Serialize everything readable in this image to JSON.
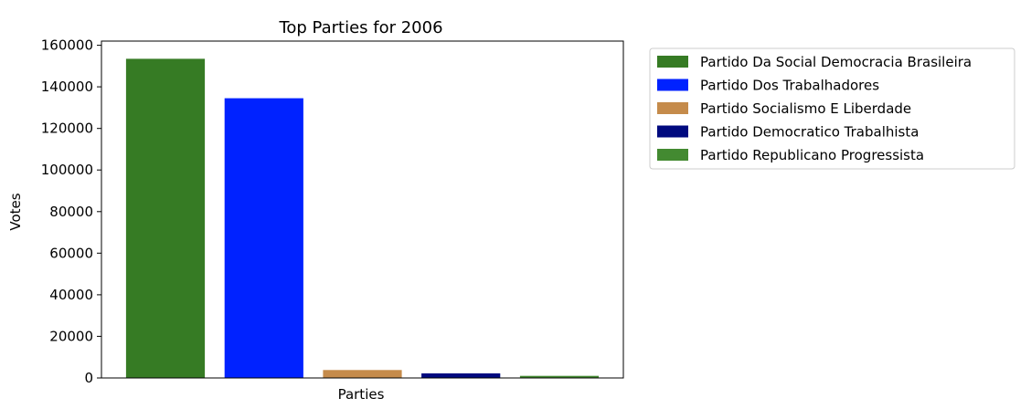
{
  "chart_data": {
    "type": "bar",
    "title": "Top Parties for 2006",
    "xlabel": "Parties",
    "ylabel": "Votes",
    "ylim": [
      0,
      162000
    ],
    "yticks": [
      0,
      20000,
      40000,
      60000,
      80000,
      100000,
      120000,
      140000,
      160000
    ],
    "grid": false,
    "legend_position": "outside-right",
    "series": [
      {
        "name": "Partido Da Social Democracia Brasileira",
        "value": 153500,
        "color": "#367b24"
      },
      {
        "name": "Partido Dos Trabalhadores",
        "value": 134500,
        "color": "#0022ff"
      },
      {
        "name": "Partido Socialismo E Liberdade",
        "value": 3800,
        "color": "#c58b4b"
      },
      {
        "name": "Partido Democratico Trabalhista",
        "value": 2200,
        "color": "#000a7f"
      },
      {
        "name": "Partido Republicano Progressista",
        "value": 1000,
        "color": "#438a31"
      }
    ]
  }
}
